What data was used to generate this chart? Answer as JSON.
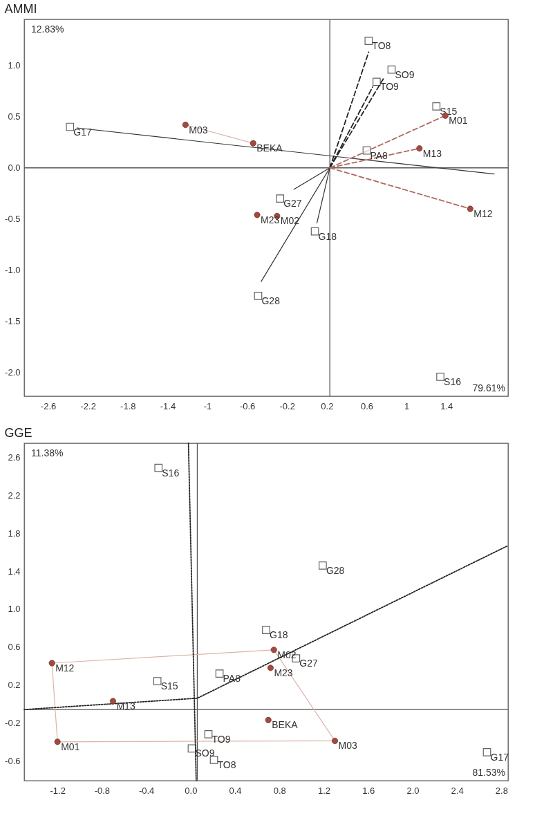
{
  "chart_data": [
    {
      "type": "scatter",
      "title": "AMMI",
      "xlim": [
        -2.84,
        2.02
      ],
      "ylim": [
        -2.23,
        1.45
      ],
      "xticks": [
        -2.6,
        -2.2,
        -1.8,
        -1.4,
        -1,
        -0.6,
        -0.2,
        0.2,
        0.6,
        1,
        1.4
      ],
      "yticks": [
        {
          "value": 1,
          "label": "1.0"
        },
        0.5,
        {
          "value": 0,
          "label": "0.0"
        },
        -0.5,
        {
          "value": -1,
          "label": "-1.0"
        },
        -1.5,
        {
          "value": -2,
          "label": "-2.0"
        }
      ],
      "ref_lines": [
        {
          "axis": "x",
          "value": 0.23,
          "color": "#555555"
        },
        {
          "axis": "y",
          "value": 0,
          "color": "#555555"
        }
      ],
      "annotations": [
        "12.83%",
        "79.61%"
      ],
      "series": [
        {
          "type": "line",
          "x": [
            -1.22,
            -0.54
          ],
          "values": [
            0.42,
            0.24
          ],
          "color": "#dcb4aa",
          "line_style": "solid"
        },
        {
          "type": "line",
          "x": [
            -2.31,
            1.88
          ],
          "values": [
            0.39,
            -0.06
          ],
          "color": "#333333",
          "line_style": "solid"
        },
        {
          "type": "line",
          "x": [
            0.23,
            -0.13
          ],
          "values": [
            0,
            -0.21
          ],
          "color": "#333333",
          "line_style": "solid"
        },
        {
          "type": "line",
          "x": [
            0.23,
            0.1
          ],
          "values": [
            0,
            -0.54
          ],
          "color": "#333333",
          "line_style": "solid"
        },
        {
          "type": "line",
          "x": [
            0.23,
            -0.46
          ],
          "values": [
            0,
            -1.11
          ],
          "color": "#333333",
          "line_style": "solid"
        },
        {
          "type": "line",
          "x": [
            0.23,
            0.62
          ],
          "values": [
            0,
            1.13
          ],
          "color": "#222222",
          "line_style": "dashed"
        },
        {
          "type": "line",
          "x": [
            0.23,
            0.78
          ],
          "values": [
            0,
            0.89
          ],
          "color": "#222222",
          "line_style": "dashed"
        },
        {
          "type": "line",
          "x": [
            0.23,
            0.66
          ],
          "values": [
            0,
            0.79
          ],
          "color": "#222222",
          "line_style": "dashed"
        },
        {
          "type": "line",
          "x": [
            0.23,
            1.39
          ],
          "values": [
            0,
            0.51
          ],
          "color": "#b06a5e",
          "line_style": "dashed"
        },
        {
          "type": "line",
          "x": [
            0.23,
            1.13
          ],
          "values": [
            0,
            0.19
          ],
          "color": "#b06a5e",
          "line_style": "dashed"
        },
        {
          "type": "line",
          "x": [
            0.23,
            1.64
          ],
          "values": [
            0,
            -0.4
          ],
          "color": "#b06a5e",
          "line_style": "dashed"
        },
        {
          "type": "scatter",
          "marker": "square",
          "color": "#222222",
          "x": [
            -2.38,
            0.62,
            0.85,
            0.7,
            1.3,
            0.6,
            -0.27,
            0.08,
            -0.49,
            1.34
          ],
          "values": [
            0.4,
            1.24,
            0.96,
            0.84,
            0.6,
            0.17,
            -0.3,
            -0.62,
            -1.25,
            -2.04
          ],
          "value_labels": [
            "G17",
            "TO8",
            "SO9",
            "TO9",
            "S15",
            "PA8",
            "G27",
            "G18",
            "G28",
            "S16"
          ]
        },
        {
          "type": "scatter",
          "marker": "circle",
          "color": "#a5483d",
          "x": [
            -1.22,
            -0.54,
            1.39,
            1.13,
            -0.5,
            -0.3,
            1.64
          ],
          "values": [
            0.42,
            0.24,
            0.51,
            0.19,
            -0.46,
            -0.47,
            -0.4
          ],
          "value_labels": [
            "M03",
            "BEKA",
            "M01",
            "M13",
            "M23",
            "M02",
            "M12"
          ]
        }
      ]
    },
    {
      "type": "scatter",
      "title": "GGE",
      "xlim": [
        -1.5,
        2.86
      ],
      "ylim": [
        -0.81,
        2.75
      ],
      "xticks": [
        -1.2,
        -0.8,
        -0.4,
        {
          "value": 0,
          "label": "0.0"
        },
        0.4,
        0.8,
        1.2,
        1.6,
        {
          "value": 2,
          "label": "2.0"
        },
        2.4,
        2.8
      ],
      "yticks": [
        2.6,
        2.2,
        1.8,
        1.4,
        {
          "value": 1,
          "label": "1.0"
        },
        0.6,
        0.2,
        -0.2,
        -0.6
      ],
      "ref_lines": [
        {
          "axis": "x",
          "value": 0.06,
          "color": "#555555"
        },
        {
          "axis": "y",
          "value": -0.06,
          "color": "#555555"
        }
      ],
      "annotations": [
        "11.38%",
        "81.53%"
      ],
      "series": [
        {
          "type": "line",
          "x": [
            -1.25,
            0.75
          ],
          "values": [
            0.43,
            0.57
          ],
          "color": "#dcb4aa",
          "line_style": "solid"
        },
        {
          "type": "line",
          "x": [
            0.75,
            1.3
          ],
          "values": [
            0.57,
            -0.39
          ],
          "color": "#dcb4aa",
          "line_style": "solid"
        },
        {
          "type": "line",
          "x": [
            1.3,
            -1.2
          ],
          "values": [
            -0.39,
            -0.4
          ],
          "color": "#dcb4aa",
          "line_style": "solid"
        },
        {
          "type": "line",
          "x": [
            -1.2,
            -1.25
          ],
          "values": [
            -0.4,
            0.43
          ],
          "color": "#dcb4aa",
          "line_style": "solid"
        },
        {
          "type": "line",
          "x": [
            -0.02,
            0.05
          ],
          "values": [
            2.75,
            -0.81
          ],
          "color": "#222222",
          "line_style": "dotted"
        },
        {
          "type": "line",
          "x": [
            -1.5,
            0.06,
            2.86
          ],
          "values": [
            -0.06,
            0.06,
            1.67
          ],
          "color": "#222222",
          "line_style": "dotted"
        },
        {
          "type": "scatter",
          "marker": "square",
          "color": "#222222",
          "x": [
            -0.29,
            -0.3,
            0.01,
            0.26,
            0.16,
            0.21,
            1.19,
            0.68,
            0.95,
            2.67
          ],
          "values": [
            2.49,
            0.24,
            -0.47,
            0.32,
            -0.32,
            -0.59,
            1.46,
            0.78,
            0.48,
            -0.51
          ],
          "value_labels": [
            "S16",
            "S15",
            "SO9",
            "PA8",
            "TO9",
            "TO8",
            "G28",
            "G18",
            "G27",
            "G17"
          ]
        },
        {
          "type": "scatter",
          "marker": "circle",
          "color": "#a5483d",
          "x": [
            -1.25,
            -0.7,
            -1.2,
            0.75,
            0.72,
            0.7,
            1.3
          ],
          "values": [
            0.43,
            0.03,
            -0.4,
            0.57,
            0.38,
            -0.17,
            -0.39
          ],
          "value_labels": [
            "M12",
            "M13",
            "M01",
            "M02",
            "M23",
            "BEKA",
            "M03"
          ]
        }
      ]
    }
  ]
}
